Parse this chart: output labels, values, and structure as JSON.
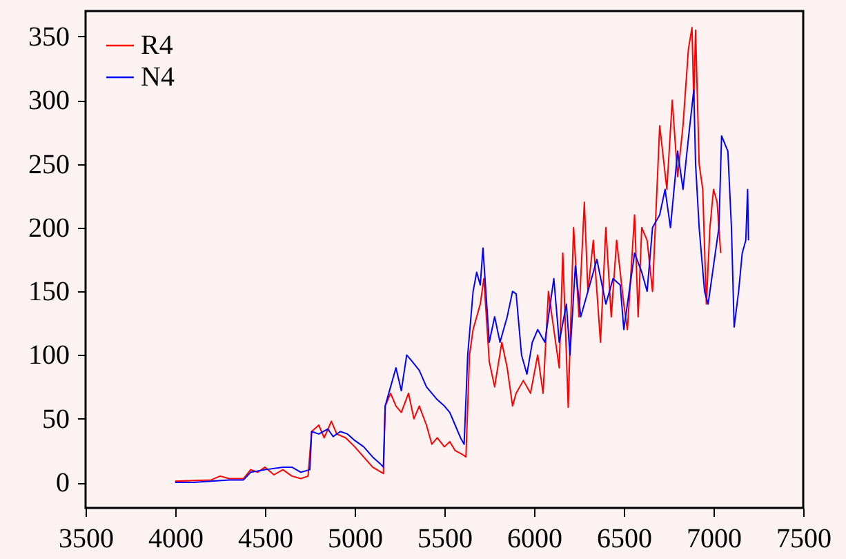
{
  "chart_data": {
    "type": "line",
    "xlim": [
      3500,
      7500
    ],
    "ylim": [
      -20,
      370
    ],
    "xticks": [
      3500,
      4000,
      4500,
      5000,
      5500,
      6000,
      6500,
      7000,
      7500
    ],
    "yticks": [
      0,
      50,
      100,
      150,
      200,
      250,
      300,
      350
    ],
    "grid": false,
    "legend": "top left",
    "line_style": "solid",
    "series": [
      {
        "name": "R4",
        "color": "#ff0000",
        "x": [
          4000,
          4200,
          4250,
          4300,
          4380,
          4420,
          4460,
          4500,
          4550,
          4600,
          4650,
          4700,
          4740,
          4760,
          4800,
          4830,
          4870,
          4900,
          4950,
          5000,
          5050,
          5100,
          5160,
          5170,
          5200,
          5230,
          5260,
          5300,
          5330,
          5360,
          5400,
          5430,
          5460,
          5500,
          5530,
          5560,
          5600,
          5620,
          5640,
          5660,
          5700,
          5720,
          5750,
          5780,
          5820,
          5850,
          5880,
          5900,
          5940,
          5980,
          6020,
          6050,
          6080,
          6110,
          6140,
          6160,
          6180,
          6190,
          6220,
          6250,
          6280,
          6300,
          6330,
          6370,
          6400,
          6430,
          6460,
          6500,
          6520,
          6560,
          6580,
          6600,
          6630,
          6660,
          6700,
          6740,
          6770,
          6800,
          6830,
          6860,
          6880,
          6890,
          6900,
          6920,
          6940,
          6960,
          6980,
          7000,
          7020,
          7040
        ],
        "values": [
          1,
          2,
          5,
          3,
          3,
          10,
          8,
          12,
          6,
          10,
          5,
          3,
          5,
          40,
          45,
          35,
          48,
          38,
          35,
          28,
          20,
          12,
          7,
          60,
          70,
          60,
          55,
          70,
          50,
          60,
          45,
          30,
          35,
          28,
          32,
          25,
          22,
          20,
          100,
          120,
          140,
          160,
          95,
          75,
          110,
          90,
          60,
          70,
          80,
          70,
          100,
          70,
          150,
          120,
          90,
          180,
          100,
          59,
          200,
          130,
          220,
          150,
          190,
          110,
          200,
          130,
          190,
          140,
          120,
          210,
          130,
          200,
          190,
          150,
          280,
          230,
          300,
          240,
          280,
          340,
          357,
          300,
          355,
          250,
          230,
          140,
          200,
          230,
          220,
          180
        ]
      },
      {
        "name": "N4",
        "color": "#0000ff",
        "x": [
          4000,
          4100,
          4200,
          4300,
          4380,
          4420,
          4500,
          4600,
          4650,
          4700,
          4750,
          4760,
          4800,
          4850,
          4880,
          4920,
          4960,
          5000,
          5050,
          5100,
          5140,
          5160,
          5170,
          5200,
          5230,
          5260,
          5290,
          5320,
          5360,
          5400,
          5430,
          5460,
          5500,
          5530,
          5560,
          5590,
          5610,
          5630,
          5660,
          5680,
          5700,
          5715,
          5750,
          5780,
          5810,
          5850,
          5880,
          5900,
          5930,
          5960,
          5990,
          6020,
          6060,
          6080,
          6110,
          6140,
          6180,
          6200,
          6230,
          6260,
          6300,
          6350,
          6400,
          6440,
          6480,
          6500,
          6530,
          6560,
          6600,
          6630,
          6660,
          6700,
          6730,
          6760,
          6800,
          6830,
          6860,
          6890,
          6900,
          6920,
          6950,
          6970,
          7000,
          7030,
          7045,
          7080,
          7100,
          7115,
          7140,
          7160,
          7180,
          7190,
          7195
        ],
        "values": [
          0,
          0,
          1,
          2,
          2,
          8,
          10,
          12,
          12,
          8,
          10,
          40,
          38,
          42,
          36,
          40,
          38,
          33,
          28,
          20,
          15,
          12,
          60,
          75,
          90,
          72,
          100,
          95,
          88,
          75,
          70,
          65,
          60,
          55,
          45,
          35,
          30,
          100,
          150,
          165,
          155,
          184,
          110,
          130,
          110,
          130,
          150,
          148,
          100,
          85,
          110,
          120,
          110,
          130,
          160,
          110,
          140,
          100,
          170,
          130,
          150,
          175,
          140,
          160,
          155,
          120,
          150,
          180,
          165,
          150,
          200,
          210,
          230,
          200,
          260,
          230,
          270,
          308,
          250,
          200,
          150,
          140,
          170,
          200,
          272,
          260,
          200,
          122,
          150,
          180,
          190,
          230,
          190
        ]
      }
    ]
  }
}
